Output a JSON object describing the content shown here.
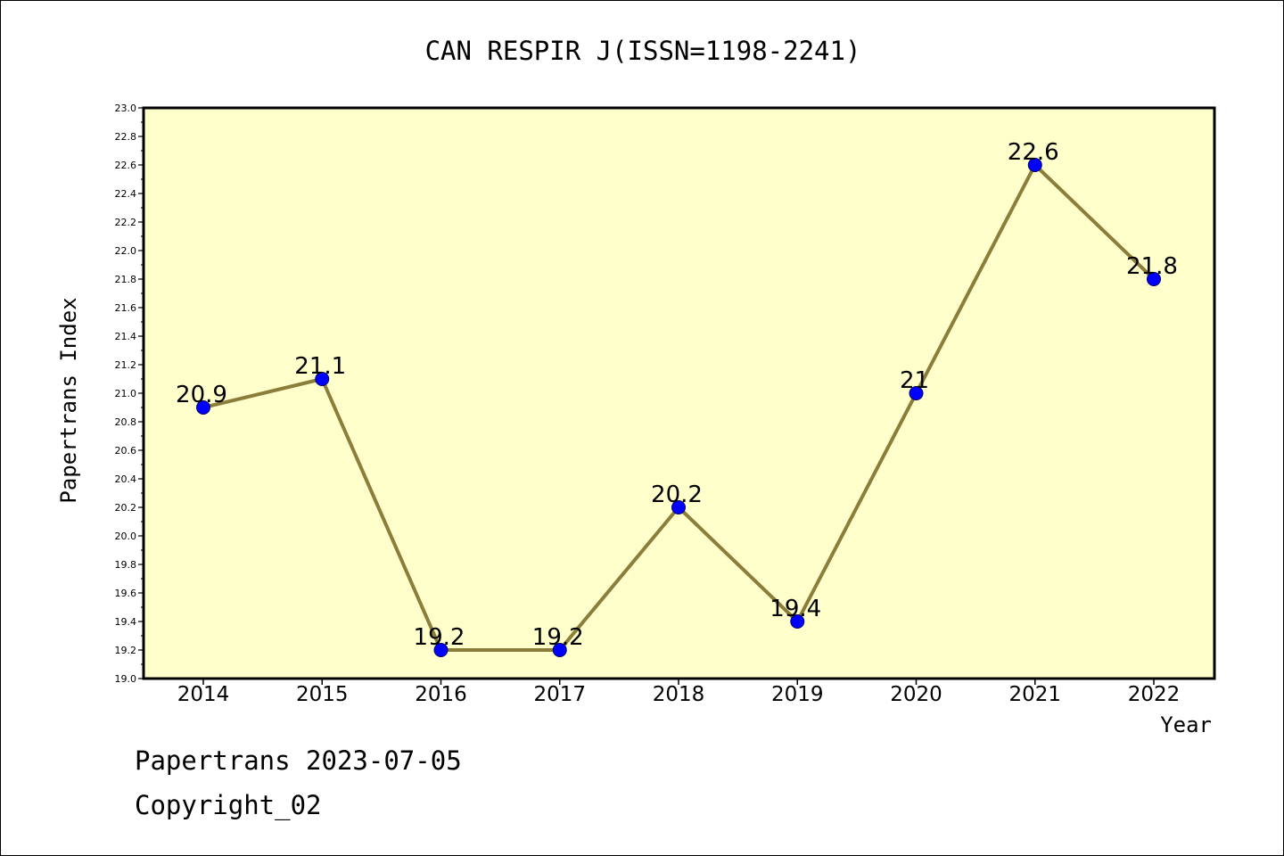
{
  "footer": {
    "line1": "Papertrans 2023-07-05",
    "line2": "Copyright_02"
  },
  "chart_data": {
    "type": "line",
    "title": "CAN RESPIR J(ISSN=1198-2241)",
    "xlabel": "Year",
    "ylabel": "Papertrans Index",
    "categories": [
      "2014",
      "2015",
      "2016",
      "2017",
      "2018",
      "2019",
      "2020",
      "2021",
      "2022"
    ],
    "values": [
      20.9,
      21.1,
      19.2,
      19.2,
      20.2,
      19.4,
      21.0,
      22.6,
      21.8
    ],
    "data_labels": [
      "20.9",
      "21.1",
      "19.2",
      "19.2",
      "20.2",
      "19.4",
      "21",
      "22.6",
      "21.8"
    ],
    "ylim": [
      19.0,
      23.0
    ],
    "yticks": [
      "19.0",
      "19.2",
      "19.4",
      "19.6",
      "19.8",
      "20.0",
      "20.2",
      "20.4",
      "20.6",
      "20.8",
      "21.0",
      "21.2",
      "21.4",
      "21.6",
      "21.8",
      "22.0",
      "22.2",
      "22.4",
      "22.6",
      "22.8",
      "23.0"
    ],
    "grid": false,
    "legend": "none",
    "colors": {
      "plot_background": "#ffffcc",
      "line": "#8b7d3a",
      "marker": "#0000ff",
      "marker_edge": "#000066"
    }
  }
}
